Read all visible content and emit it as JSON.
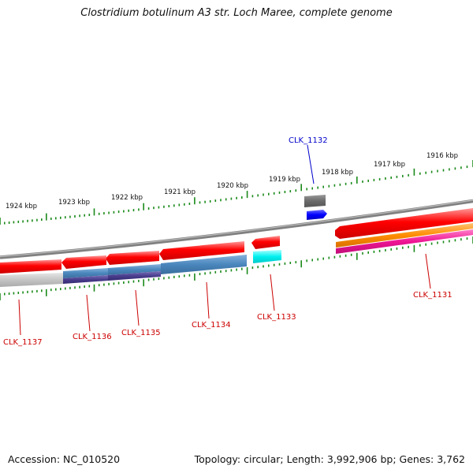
{
  "title": "Clostridium botulinum A3 str. Loch Maree, complete genome",
  "footer": {
    "accession": "Accession: NC_010520",
    "topology": "Topology: circular; Length: 3,992,906 bp; Genes: 3,762"
  },
  "scale_labels": [
    "1924 kbp",
    "1923 kbp",
    "1922 kbp",
    "1921 kbp",
    "1920 kbp",
    "1919 kbp",
    "1918 kbp",
    "1917 kbp",
    "1916 kbp"
  ],
  "gene_labels": [
    {
      "text": "CLK_1132",
      "color": "#0000cc"
    },
    {
      "text": "CLK_1131",
      "color": "#cc0000"
    },
    {
      "text": "CLK_1133",
      "color": "#cc0000"
    },
    {
      "text": "CLK_1134",
      "color": "#cc0000"
    },
    {
      "text": "CLK_1135",
      "color": "#cc0000"
    },
    {
      "text": "CLK_1136",
      "color": "#cc0000"
    },
    {
      "text": "CLK_1137",
      "color": "#cc0000"
    }
  ],
  "colors": {
    "backbone": "#808080",
    "tick": "#1a8a1a",
    "gene_red": "#ee0000",
    "gene_blue": "#0000ee",
    "gene_grey": "#707070",
    "gene_cyan": "#00eeee",
    "steelblue": "#4682b4",
    "darkslateblue": "#483d8b",
    "orange": "#ff8c00",
    "magenta": "#ee1493",
    "light_grey": "#c0c0c0"
  }
}
